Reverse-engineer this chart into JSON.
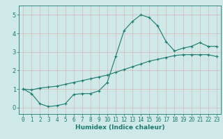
{
  "xlabel": "Humidex (Indice chaleur)",
  "bg_color": "#cfe8e8",
  "grid_color": "#b8d4d4",
  "line_color": "#1a7a6e",
  "xlim": [
    -0.5,
    23.5
  ],
  "ylim": [
    -0.35,
    5.5
  ],
  "xticks": [
    0,
    1,
    2,
    3,
    4,
    5,
    6,
    7,
    8,
    9,
    10,
    11,
    12,
    13,
    14,
    15,
    16,
    17,
    18,
    19,
    20,
    21,
    22,
    23
  ],
  "yticks": [
    0,
    1,
    2,
    3,
    4,
    5
  ],
  "curve1_x": [
    0,
    1,
    2,
    3,
    4,
    5,
    6,
    7,
    8,
    9,
    10,
    11,
    12,
    13,
    14,
    15,
    16,
    17,
    18,
    19,
    20,
    21,
    22,
    23
  ],
  "curve1_y": [
    1.0,
    0.75,
    0.2,
    0.05,
    0.1,
    0.2,
    0.7,
    0.75,
    0.75,
    0.9,
    1.35,
    2.75,
    4.15,
    4.65,
    5.0,
    4.85,
    4.4,
    3.55,
    3.05,
    3.2,
    3.3,
    3.5,
    3.3,
    3.3
  ],
  "curve2_x": [
    0,
    1,
    2,
    3,
    4,
    5,
    6,
    7,
    8,
    9,
    10,
    11,
    12,
    13,
    14,
    15,
    16,
    17,
    18,
    19,
    20,
    21,
    22,
    23
  ],
  "curve2_y": [
    1.0,
    0.95,
    1.05,
    1.1,
    1.15,
    1.25,
    1.35,
    1.45,
    1.55,
    1.65,
    1.75,
    1.9,
    2.05,
    2.2,
    2.35,
    2.5,
    2.6,
    2.7,
    2.8,
    2.85,
    2.85,
    2.85,
    2.85,
    2.75
  ],
  "xlabel_fontsize": 6.5,
  "tick_fontsize": 5.5,
  "ytick_fontsize": 6.0,
  "marker_size": 2.0,
  "line_width": 0.8
}
